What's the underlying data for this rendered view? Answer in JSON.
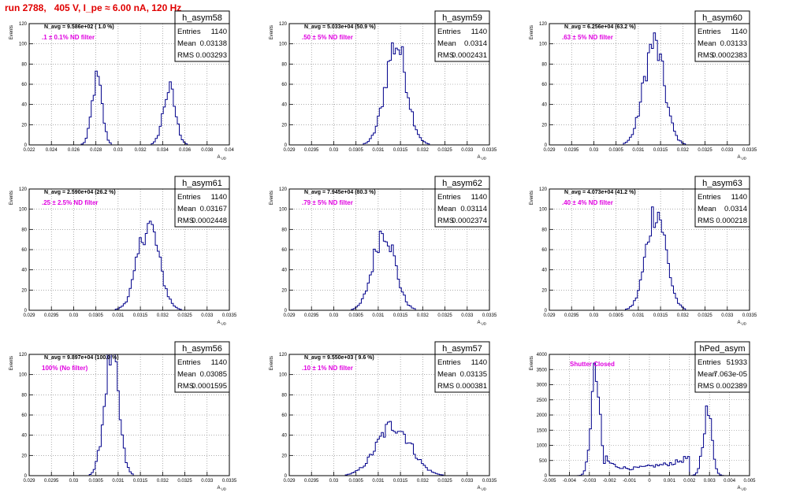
{
  "page_title": "run 2788,   405 V, I_pe ≈ 6.00 nA, 120 Hz",
  "colors": {
    "hist_line": "#00008b",
    "grid": "#7a7a7a",
    "label_magenta": "#e000e0",
    "title_red": "#e00000"
  },
  "chart_data": [
    {
      "type": "histogram",
      "title": "h_asym58",
      "stats": {
        "entries_label": "Entries",
        "entries": "1140",
        "mean_label": "Mean",
        "mean": "0.03138",
        "rms_label": "RMS",
        "rms": "0.003293"
      },
      "navg_text": "N_avg = 9.586e+02 ( 1.0 %)",
      "label": ".1 ± 0.1% ND filter",
      "ylabel": "Events",
      "xlabel": "A UD",
      "xlim": [
        0.022,
        0.04
      ],
      "ylim": [
        0,
        120
      ],
      "xticks": [
        0.022,
        0.024,
        0.026,
        0.028,
        0.03,
        0.032,
        0.034,
        0.036,
        0.038,
        0.04
      ],
      "xtick_labels": [
        "0.022",
        "0.024",
        "0.026",
        "0.028",
        "0.03",
        "0.032",
        "0.034",
        "0.036",
        "0.038",
        "0.04"
      ],
      "yticks": [
        0,
        20,
        40,
        60,
        80,
        100,
        120
      ],
      "peaks": [
        {
          "x": 0.0281,
          "sigma": 0.00045,
          "height": 65
        },
        {
          "x": 0.0346,
          "sigma": 0.00055,
          "height": 55
        }
      ]
    },
    {
      "type": "histogram",
      "title": "h_asym59",
      "stats": {
        "entries_label": "Entries",
        "entries": "1140",
        "mean_label": "Mean",
        "mean": "0.0314",
        "rms_label": "RMS",
        "rms": "0.0002431"
      },
      "navg_text": "N_avg = 5.033e+04 (50.9 %)",
      "label": ".50 ± 5% ND filter",
      "ylabel": "Events",
      "xlabel": "A UD",
      "xlim": [
        0.029,
        0.0335
      ],
      "ylim": [
        0,
        120
      ],
      "xticks": [
        0.029,
        0.0295,
        0.03,
        0.0305,
        0.031,
        0.0315,
        0.032,
        0.0325,
        0.033,
        0.0335
      ],
      "xtick_labels": [
        "0.029",
        "0.0295",
        "0.03",
        "0.0305",
        "0.031",
        "0.0315",
        "0.032",
        "0.0325",
        "0.033",
        "0.0335"
      ],
      "yticks": [
        0,
        20,
        40,
        60,
        80,
        100,
        120
      ],
      "peaks": [
        {
          "x": 0.0314,
          "sigma": 0.00024,
          "height": 100
        }
      ]
    },
    {
      "type": "histogram",
      "title": "h_asym60",
      "stats": {
        "entries_label": "Entries",
        "entries": "1140",
        "mean_label": "Mean",
        "mean": "0.03133",
        "rms_label": "RMS",
        "rms": "0.0002383"
      },
      "navg_text": "N_avg = 6.256e+04 (63.2 %)",
      "label": ".63 ± 5% ND filter",
      "ylabel": "Events",
      "xlabel": "A UD",
      "xlim": [
        0.029,
        0.0335
      ],
      "ylim": [
        0,
        120
      ],
      "xticks": [
        0.029,
        0.0295,
        0.03,
        0.0305,
        0.031,
        0.0315,
        0.032,
        0.0325,
        0.033,
        0.0335
      ],
      "xtick_labels": [
        "0.029",
        "0.0295",
        "0.03",
        "0.0305",
        "0.031",
        "0.0315",
        "0.032",
        "0.0325",
        "0.033",
        "0.0335"
      ],
      "yticks": [
        0,
        20,
        40,
        60,
        80,
        100,
        120
      ],
      "peaks": [
        {
          "x": 0.03135,
          "sigma": 0.00023,
          "height": 100
        }
      ]
    },
    {
      "type": "histogram",
      "title": "h_asym61",
      "stats": {
        "entries_label": "Entries",
        "entries": "1140",
        "mean_label": "Mean",
        "mean": "0.03167",
        "rms_label": "RMS",
        "rms": "0.0002448"
      },
      "navg_text": "N_avg = 2.590e+04 (26.2 %)",
      "label": ".25 ± 2.5% ND filter",
      "ylabel": "Events",
      "xlabel": "A UD",
      "xlim": [
        0.029,
        0.0335
      ],
      "ylim": [
        0,
        120
      ],
      "xticks": [
        0.029,
        0.0295,
        0.03,
        0.0305,
        0.031,
        0.0315,
        0.032,
        0.0325,
        0.033,
        0.0335
      ],
      "xtick_labels": [
        "0.029",
        "0.0295",
        "0.03",
        "0.0305",
        "0.031",
        "0.0315",
        "0.032",
        "0.0325",
        "0.033",
        "0.0335"
      ],
      "yticks": [
        0,
        20,
        40,
        60,
        80,
        100,
        120
      ],
      "peaks": [
        {
          "x": 0.03168,
          "sigma": 0.00024,
          "height": 85
        }
      ]
    },
    {
      "type": "histogram",
      "title": "h_asym62",
      "stats": {
        "entries_label": "Entries",
        "entries": "1140",
        "mean_label": "Mean",
        "mean": "0.03114",
        "rms_label": "RMS",
        "rms": "0.0002374"
      },
      "navg_text": "N_avg = 7.945e+04 (80.3 %)",
      "label": ".79 ± 5% ND filter",
      "ylabel": "Events",
      "xlabel": "A UD",
      "xlim": [
        0.029,
        0.0335
      ],
      "ylim": [
        0,
        120
      ],
      "xticks": [
        0.029,
        0.0295,
        0.03,
        0.0305,
        0.031,
        0.0315,
        0.032,
        0.0325,
        0.033,
        0.0335
      ],
      "xtick_labels": [
        "0.029",
        "0.0295",
        "0.03",
        "0.0305",
        "0.031",
        "0.0315",
        "0.032",
        "0.0325",
        "0.033",
        "0.0335"
      ],
      "yticks": [
        0,
        20,
        40,
        60,
        80,
        100,
        120
      ],
      "peaks": [
        {
          "x": 0.03113,
          "sigma": 0.00024,
          "height": 80
        }
      ]
    },
    {
      "type": "histogram",
      "title": "h_asym63",
      "stats": {
        "entries_label": "Entries",
        "entries": "1140",
        "mean_label": "Mean",
        "mean": "0.0314",
        "rms_label": "RMS",
        "rms": "0.000218"
      },
      "navg_text": "N_avg = 4.073e+04 (41.2 %)",
      "label": ".40 ± 4% ND filter",
      "ylabel": "Events",
      "xlabel": "A UD",
      "xlim": [
        0.029,
        0.0335
      ],
      "ylim": [
        0,
        120
      ],
      "xticks": [
        0.029,
        0.0295,
        0.03,
        0.0305,
        0.031,
        0.0315,
        0.032,
        0.0325,
        0.033,
        0.0335
      ],
      "xtick_labels": [
        "0.029",
        "0.0295",
        "0.03",
        "0.0305",
        "0.031",
        "0.0315",
        "0.032",
        "0.0325",
        "0.033",
        "0.0335"
      ],
      "yticks": [
        0,
        20,
        40,
        60,
        80,
        100,
        120
      ],
      "peaks": [
        {
          "x": 0.0314,
          "sigma": 0.00022,
          "height": 100
        }
      ]
    },
    {
      "type": "histogram",
      "title": "h_asym56",
      "stats": {
        "entries_label": "Entries",
        "entries": "1140",
        "mean_label": "Mean",
        "mean": "0.03085",
        "rms_label": "RMS",
        "rms": "0.0001595"
      },
      "navg_text": "N_avg = 9.897e+04 (100.0 %)",
      "label": "100% (No filter)",
      "ylabel": "Events",
      "xlabel": "A UD",
      "xlim": [
        0.029,
        0.0335
      ],
      "ylim": [
        0,
        120
      ],
      "xticks": [
        0.029,
        0.0295,
        0.03,
        0.0305,
        0.031,
        0.0315,
        0.032,
        0.0325,
        0.033,
        0.0335
      ],
      "xtick_labels": [
        "0.029",
        "0.0295",
        "0.03",
        "0.0305",
        "0.031",
        "0.0315",
        "0.032",
        "0.0325",
        "0.033",
        "0.0335"
      ],
      "yticks": [
        0,
        20,
        40,
        60,
        80,
        100,
        120
      ],
      "peaks": [
        {
          "x": 0.03085,
          "sigma": 0.00016,
          "height": 120
        }
      ]
    },
    {
      "type": "histogram",
      "title": "h_asym57",
      "stats": {
        "entries_label": "Entries",
        "entries": "1140",
        "mean_label": "Mean",
        "mean": "0.03135",
        "rms_label": "RMS",
        "rms": "0.000381"
      },
      "navg_text": "N_avg = 9.550e+03 ( 9.6 %)",
      "label": ".10 ± 1% ND filter",
      "ylabel": "Events",
      "xlabel": "A UD",
      "xlim": [
        0.029,
        0.0335
      ],
      "ylim": [
        0,
        120
      ],
      "xticks": [
        0.029,
        0.0295,
        0.03,
        0.0305,
        0.031,
        0.0315,
        0.032,
        0.0325,
        0.033,
        0.0335
      ],
      "xtick_labels": [
        "0.029",
        "0.0295",
        "0.03",
        "0.0305",
        "0.031",
        "0.0315",
        "0.032",
        "0.0325",
        "0.033",
        "0.0335"
      ],
      "yticks": [
        0,
        20,
        40,
        60,
        80,
        100,
        120
      ],
      "peaks": [
        {
          "x": 0.03135,
          "sigma": 0.00038,
          "height": 50
        }
      ]
    },
    {
      "type": "histogram",
      "title": "hPed_asym",
      "stats": {
        "entries_label": "Entries",
        "entries": "51933",
        "mean_label": "Mean",
        "mean": "7.063e-05",
        "rms_label": "RMS",
        "rms": "0.002389"
      },
      "navg_text": "",
      "label": "Shutter Closed",
      "ylabel": "Events",
      "xlabel": "A UD",
      "xlim": [
        -0.005,
        0.005
      ],
      "ylim": [
        0,
        4000
      ],
      "xticks": [
        -0.005,
        -0.004,
        -0.003,
        -0.002,
        -0.001,
        0,
        0.001,
        0.002,
        0.003,
        0.004,
        0.005
      ],
      "xtick_labels": [
        "-0.005",
        "-0.004",
        "-0.003",
        "-0.002",
        "-0.001",
        "0",
        "0.001",
        "0.002",
        "0.003",
        "0.004",
        "0.005"
      ],
      "yticks": [
        0,
        500,
        1000,
        1500,
        2000,
        2500,
        3000,
        3500,
        4000
      ],
      "peaks": [
        {
          "x": -0.0027,
          "sigma": 0.00022,
          "height": 3300
        },
        {
          "x": 0.0029,
          "sigma": 0.00022,
          "height": 2100
        }
      ],
      "baseline_points": [
        [
          -0.0022,
          480
        ],
        [
          -0.0016,
          300
        ],
        [
          -0.001,
          230
        ],
        [
          -0.0004,
          270
        ],
        [
          0.0002,
          320
        ],
        [
          0.0008,
          370
        ],
        [
          0.0014,
          450
        ],
        [
          0.002,
          620
        ]
      ]
    }
  ]
}
